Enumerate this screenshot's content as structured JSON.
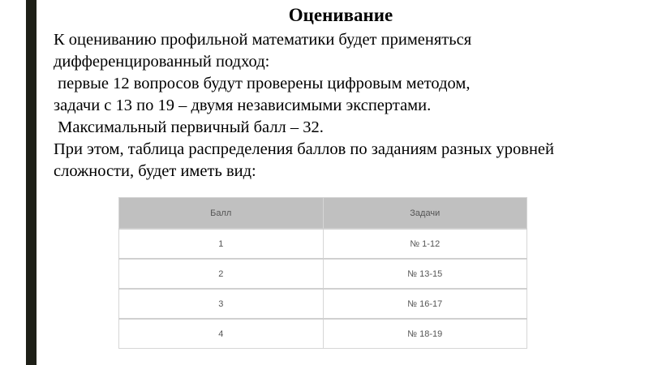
{
  "title": "Оценивание",
  "paragraph_lines": [
    "К оцениванию профильной математики будет применяться",
    "дифференцированный подход:",
    " первые 12 вопросов будут проверены цифровым методом,",
    "задачи с 13 по 19 – двумя независимыми экспертами.",
    " Максимальный первичный балл – 32.",
    "При этом, таблица распределения баллов по заданиям разных уровней",
    "сложности, будет иметь вид:"
  ],
  "table": {
    "headers": [
      "Балл",
      "Задачи"
    ],
    "rows": [
      [
        "1",
        "№ 1-12"
      ],
      [
        "2",
        "№ 13-15"
      ],
      [
        "3",
        "№ 16-17"
      ],
      [
        "4",
        "№ 18-19"
      ]
    ]
  },
  "colors": {
    "side_bar": "#1e1f17",
    "table_header": "#c0c0c0"
  }
}
